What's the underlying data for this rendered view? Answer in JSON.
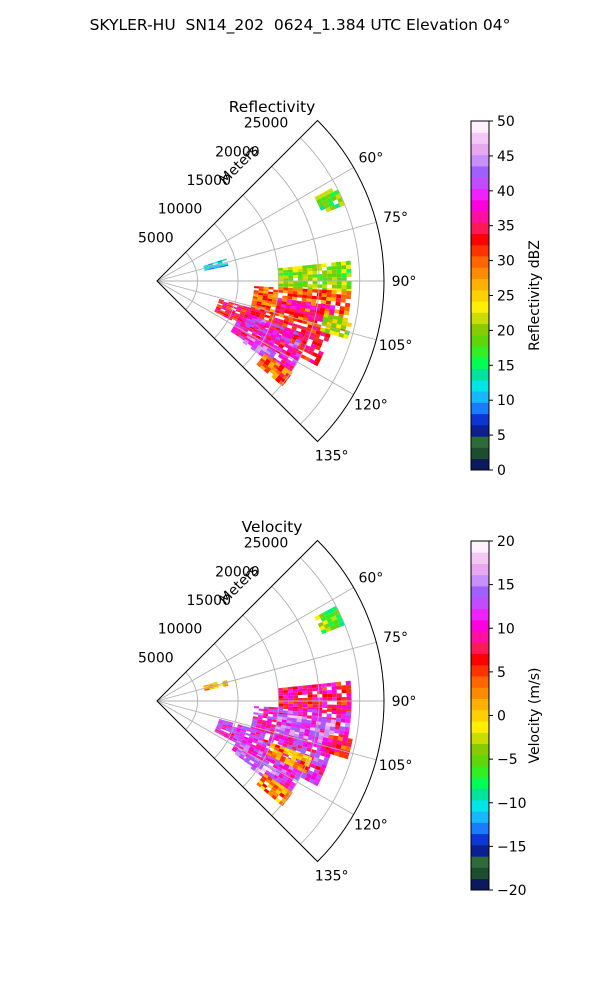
{
  "suptitle": "SKYLER-HU  SN14_202  0624_1.384 UTC Elevation 04°",
  "chart_data": [
    {
      "type": "heatmap",
      "subtype": "polar-sector-radar-ppi",
      "title": "Reflectivity",
      "radial_axis_label": "Meters",
      "radial_ticks": [
        5000,
        10000,
        15000,
        20000,
        25000
      ],
      "radial_tick_labels": [
        "5000",
        "10000",
        "15000",
        "20000",
        "25000"
      ],
      "theta_range_deg": [
        45,
        135
      ],
      "theta_ticks": [
        60,
        75,
        90,
        105,
        120,
        135
      ],
      "theta_tick_labels": [
        "60°",
        "75°",
        "90°",
        "105°",
        "120°",
        "135°"
      ],
      "grid": true,
      "colorbar": {
        "label": "Reflectivity dBZ",
        "range": [
          0,
          50
        ],
        "ticks": [
          0,
          5,
          10,
          15,
          20,
          25,
          30,
          35,
          40,
          45,
          50
        ],
        "tick_labels": [
          "0",
          "5",
          "10",
          "15",
          "20",
          "25",
          "30",
          "35",
          "40",
          "45",
          "50"
        ],
        "colors": [
          "#0a1a5c",
          "#1b4d2e",
          "#2d6b3a",
          "#0b1f8f",
          "#0c35d6",
          "#1a7bff",
          "#17b8ff",
          "#00e5e5",
          "#00e39a",
          "#00ff55",
          "#33ee22",
          "#5fd60a",
          "#88cc00",
          "#c8dd00",
          "#ffee00",
          "#ffd000",
          "#ffb000",
          "#ff8c00",
          "#ff6600",
          "#ff3300",
          "#ff0000",
          "#ff1a55",
          "#ff10a0",
          "#ff00dd",
          "#ee22ff",
          "#c24bff",
          "#a060ff",
          "#c890ff",
          "#e8a8f0",
          "#f4c8f4",
          "#fff0ff"
        ]
      },
      "echo_regions": [
        {
          "theta": [
            84,
            93
          ],
          "r": [
            15000,
            24000
          ],
          "value": 20
        },
        {
          "theta": [
            93,
            106
          ],
          "r": [
            12000,
            24000
          ],
          "value": 30
        },
        {
          "theta": [
            98,
            103
          ],
          "r": [
            15000,
            22000
          ],
          "value": 36
        },
        {
          "theta": [
            106,
            118
          ],
          "r": [
            8000,
            22000
          ],
          "value": 34
        },
        {
          "theta": [
            110,
            116
          ],
          "r": [
            12000,
            19000
          ],
          "value": 40
        },
        {
          "theta": [
            116,
            124
          ],
          "r": [
            11000,
            20000
          ],
          "value": 37
        },
        {
          "theta": [
            121,
            125
          ],
          "r": [
            13000,
            17000
          ],
          "value": 43
        },
        {
          "theta": [
            124,
            130
          ],
          "r": [
            16000,
            20000
          ],
          "value": 30
        },
        {
          "theta": [
            101,
            106
          ],
          "r": [
            21000,
            24500
          ],
          "value": 22
        },
        {
          "theta": [
            62,
            68
          ],
          "r": [
            22000,
            25000
          ],
          "value": 18
        },
        {
          "theta": [
            72,
            78
          ],
          "r": [
            6000,
            9000
          ],
          "value": 12
        }
      ]
    },
    {
      "type": "heatmap",
      "subtype": "polar-sector-radar-ppi",
      "title": "Velocity",
      "radial_axis_label": "Meters",
      "radial_ticks": [
        5000,
        10000,
        15000,
        20000,
        25000
      ],
      "radial_tick_labels": [
        "5000",
        "10000",
        "15000",
        "20000",
        "25000"
      ],
      "theta_range_deg": [
        45,
        135
      ],
      "theta_ticks": [
        60,
        75,
        90,
        105,
        120,
        135
      ],
      "theta_tick_labels": [
        "60°",
        "75°",
        "90°",
        "105°",
        "120°",
        "135°"
      ],
      "grid": true,
      "colorbar": {
        "label": "Velocity (m/s)",
        "range": [
          -20,
          20
        ],
        "ticks": [
          -20,
          -15,
          -10,
          -5,
          0,
          5,
          10,
          15,
          20
        ],
        "tick_labels": [
          "−20",
          "−15",
          "−10",
          "−5",
          "0",
          "5",
          "10",
          "15",
          "20"
        ],
        "colors": [
          "#0a1a5c",
          "#1b4d2e",
          "#2d6b3a",
          "#0b1f8f",
          "#0c35d6",
          "#1a7bff",
          "#17b8ff",
          "#00e5e5",
          "#00e39a",
          "#00ff55",
          "#33ee22",
          "#5fd60a",
          "#88cc00",
          "#c8dd00",
          "#ffee00",
          "#ffd000",
          "#ffb000",
          "#ff8c00",
          "#ff6600",
          "#ff3300",
          "#ff0000",
          "#ff1a55",
          "#ff10a0",
          "#ff00dd",
          "#ee22ff",
          "#c24bff",
          "#a060ff",
          "#c890ff",
          "#e8a8f0",
          "#f4c8f4",
          "#fff0ff"
        ]
      },
      "echo_regions": [
        {
          "theta": [
            84,
            93
          ],
          "r": [
            15000,
            24000
          ],
          "value": 8
        },
        {
          "theta": [
            93,
            106
          ],
          "r": [
            12000,
            24000
          ],
          "value": 11
        },
        {
          "theta": [
            96,
            104
          ],
          "r": [
            15000,
            22000
          ],
          "value": 14
        },
        {
          "theta": [
            106,
            118
          ],
          "r": [
            8000,
            22000
          ],
          "value": 11
        },
        {
          "theta": [
            110,
            116
          ],
          "r": [
            15000,
            20000
          ],
          "value": 3
        },
        {
          "theta": [
            116,
            124
          ],
          "r": [
            11000,
            20000
          ],
          "value": 12
        },
        {
          "theta": [
            121,
            125
          ],
          "r": [
            13000,
            17000
          ],
          "value": 16
        },
        {
          "theta": [
            124,
            130
          ],
          "r": [
            16000,
            20000
          ],
          "value": 2
        },
        {
          "theta": [
            101,
            106
          ],
          "r": [
            21000,
            24500
          ],
          "value": 7
        },
        {
          "theta": [
            62,
            68
          ],
          "r": [
            22000,
            25000
          ],
          "value": -5
        },
        {
          "theta": [
            72,
            78
          ],
          "r": [
            6000,
            9000
          ],
          "value": 1
        }
      ]
    }
  ]
}
